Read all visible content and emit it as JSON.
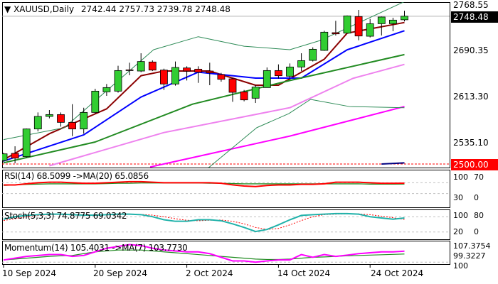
{
  "header": {
    "symbol": "XAUUSD,Daily",
    "ohlc": "2742.44 2757.73 2739.78 2748.48",
    "menu_icon": "triangle-down"
  },
  "price_axis": [
    "2768.55",
    "2690.35",
    "2613.30",
    "2535.10"
  ],
  "current_price": {
    "label": "2748.48",
    "bg": "#000000"
  },
  "level_line": {
    "label": "2500.00",
    "value": 2500,
    "color": "#ff0000"
  },
  "rsi": {
    "title": "RSI(14) 68.5099  ->MA(20) 65.0856",
    "levels": [
      "100",
      "70",
      "30",
      "0"
    ]
  },
  "stoch": {
    "title": "Stoch(5,3,3) 74.8775 69.0342",
    "levels": [
      "100",
      "80",
      "20",
      "0"
    ]
  },
  "momentum": {
    "title": "Momentum(14) 105.4031  ->MA(7) 103.7730",
    "levels": [
      "107.3754",
      "99.3227",
      "100"
    ]
  },
  "dates": [
    "10 Sep 2024",
    "20 Sep 2024",
    "2 Oct 2024",
    "14 Oct 2024",
    "24 Oct 2024"
  ],
  "colors": {
    "up": "#32cd32",
    "down": "#ff0000",
    "ma_fast": "#8b0000",
    "ma_blue": "#0000ff",
    "ma_green": "#228b22",
    "ma_violet": "#ee82ee",
    "ma_magenta": "#ff00ff",
    "bands": "#2e8b57"
  },
  "chart_data": {
    "type": "candlestick",
    "ylim": [
      2500,
      2768.55
    ],
    "date_ticks": {
      "10 Sep 2024": 0,
      "20 Sep 2024": 8,
      "2 Oct 2024": 16,
      "14 Oct 2024": 24,
      "24 Oct 2024": 32
    },
    "ohlc": [
      [
        2505.9,
        2519,
        2503,
        2517.1
      ],
      [
        2517.9,
        2529.8,
        2501.2,
        2509.9
      ],
      [
        2512.3,
        2559.7,
        2511,
        2558.9
      ],
      [
        2558.9,
        2586.7,
        2554.9,
        2580.0
      ],
      [
        2580,
        2590.7,
        2576.8,
        2583.1
      ],
      [
        2583.1,
        2586.7,
        2562.8,
        2570
      ],
      [
        2570,
        2600.6,
        2546.9,
        2558.9
      ],
      [
        2558.9,
        2594.6,
        2550.9,
        2586.7
      ],
      [
        2586.7,
        2626.5,
        2584.7,
        2622.5
      ],
      [
        2621.3,
        2634.5,
        2614.6,
        2628.5
      ],
      [
        2622.5,
        2665.1,
        2620,
        2657.1
      ],
      [
        2658.3,
        2670.3,
        2649.2,
        2657.1
      ],
      [
        2656.3,
        2686.2,
        2654.4,
        2672.3
      ],
      [
        2671.5,
        2674.2,
        2656.3,
        2657.9
      ],
      [
        2657.9,
        2660.3,
        2624.5,
        2634.5
      ],
      [
        2634.5,
        2672.3,
        2631.7,
        2662.3
      ],
      [
        2661.5,
        2664.3,
        2640.4,
        2656.3
      ],
      [
        2659.5,
        2664.3,
        2636.4,
        2654.4
      ],
      [
        2656.3,
        2670.3,
        2632.5,
        2653.2
      ],
      [
        2650.4,
        2653.2,
        2638.4,
        2642.4
      ],
      [
        2643.2,
        2644.4,
        2604.6,
        2620.5
      ],
      [
        2621.3,
        2624.5,
        2605.4,
        2607.8
      ],
      [
        2610.6,
        2632.5,
        2602.6,
        2629.3
      ],
      [
        2628.5,
        2662.3,
        2628.5,
        2657.1
      ],
      [
        2657.1,
        2667.5,
        2643.6,
        2648.4
      ],
      [
        2647.6,
        2669.1,
        2642.4,
        2663.1
      ],
      [
        2663.1,
        2686.2,
        2656.3,
        2673.8
      ],
      [
        2674.2,
        2696.1,
        2672.3,
        2692.9
      ],
      [
        2691,
        2724,
        2690.2,
        2721.6
      ],
      [
        2720.8,
        2740.7,
        2716,
        2718.8
      ],
      [
        2720,
        2749.8,
        2719.2,
        2749
      ],
      [
        2747.9,
        2759,
        2708,
        2715.2
      ],
      [
        2714.8,
        2743.9,
        2712.8,
        2735.9
      ],
      [
        2735.9,
        2747.9,
        2716,
        2747.1
      ],
      [
        2735.9,
        2745.9,
        2723.2,
        2741.9
      ],
      [
        2742.44,
        2757.73,
        2739.78,
        2748.48
      ]
    ],
    "overlays": [
      {
        "color": "#8b0000",
        "points": [
          [
            0,
            2507.1
          ],
          [
            4,
            2550.9
          ],
          [
            9,
            2592.7
          ],
          [
            12,
            2648.4
          ],
          [
            14,
            2656.3
          ],
          [
            18,
            2656.3
          ],
          [
            22,
            2632.5
          ],
          [
            24,
            2632.5
          ],
          [
            28,
            2676.2
          ],
          [
            30,
            2720
          ],
          [
            35,
            2737.9
          ]
        ]
      },
      {
        "color": "#0000ff",
        "points": [
          [
            0,
            2505
          ],
          [
            7,
            2549
          ],
          [
            12,
            2612.6
          ],
          [
            17,
            2654.4
          ],
          [
            22,
            2644.4
          ],
          [
            26,
            2644.4
          ],
          [
            30,
            2692
          ],
          [
            35,
            2724
          ]
        ]
      },
      {
        "color": "#228b22",
        "points": [
          [
            0,
            2502
          ],
          [
            8,
            2537
          ],
          [
            16.5,
            2600.6
          ],
          [
            25,
            2640.4
          ],
          [
            35,
            2684
          ]
        ]
      },
      {
        "color": "#ee82ee",
        "points": [
          [
            4,
            2497
          ],
          [
            14,
            2552.9
          ],
          [
            25,
            2594.7
          ],
          [
            30.5,
            2644
          ],
          [
            35,
            2667.5
          ]
        ]
      },
      {
        "color": "#ff00ff",
        "points": [
          [
            12.8,
            2495
          ],
          [
            25,
            2547
          ],
          [
            35,
            2596.6
          ]
        ]
      },
      {
        "color": "#000080",
        "points": [
          [
            33,
            2500
          ],
          [
            35,
            2502
          ]
        ]
      },
      {
        "color": "#2e8b57",
        "thin": true,
        "points": [
          [
            0,
            2541
          ],
          [
            5.3,
            2561
          ],
          [
            13.1,
            2692.2
          ],
          [
            17,
            2714
          ],
          [
            21,
            2698
          ],
          [
            25,
            2692.2
          ],
          [
            27.7,
            2708
          ],
          [
            35,
            2773
          ]
        ]
      },
      {
        "color": "#2e8b57",
        "thin": true,
        "points": [
          [
            17.6,
            2489
          ],
          [
            22.1,
            2561
          ],
          [
            24.9,
            2584.7
          ],
          [
            26.8,
            2608.6
          ],
          [
            30.2,
            2596.6
          ],
          [
            35,
            2594.6
          ]
        ]
      }
    ],
    "rsi": [
      62,
      62,
      66,
      70,
      72,
      72,
      70,
      68,
      68,
      70,
      72,
      74,
      74,
      72,
      70,
      70,
      70,
      70,
      70,
      68,
      62,
      58,
      56,
      60,
      62,
      62,
      64,
      64,
      66,
      72,
      72,
      72,
      70,
      68,
      68,
      68.5
    ],
    "rsi_ma": [
      60,
      62,
      64,
      65,
      66,
      66,
      66,
      66,
      66,
      67,
      68,
      68,
      69,
      69,
      69,
      69,
      69,
      69,
      68,
      68,
      67,
      66,
      66,
      66,
      66,
      66,
      66,
      66,
      66,
      66,
      66,
      66,
      65,
      65,
      65,
      65.1
    ],
    "stoch_k": [
      70,
      80,
      85,
      88,
      90,
      90,
      88,
      86,
      86,
      88,
      90,
      90,
      88,
      80,
      68,
      62,
      62,
      68,
      68,
      64,
      52,
      38,
      22,
      30,
      48,
      68,
      85,
      88,
      90,
      92,
      92,
      90,
      80,
      75,
      70,
      74.9
    ],
    "stoch_d": [
      65,
      72,
      80,
      85,
      88,
      89,
      89,
      88,
      87,
      87,
      88,
      89,
      89,
      86,
      80,
      72,
      66,
      64,
      66,
      67,
      62,
      52,
      38,
      30,
      34,
      48,
      65,
      80,
      88,
      90,
      91,
      91,
      88,
      82,
      76,
      69
    ],
    "momentum": [
      100.5,
      101.5,
      102.5,
      103,
      103.5,
      103.5,
      102.5,
      103,
      105,
      107,
      108,
      109,
      108.5,
      107,
      106,
      105.5,
      105,
      105,
      104,
      102,
      100,
      100,
      99.3,
      100,
      100.5,
      100.5,
      103.5,
      102,
      103.5,
      102.5,
      103.2,
      104,
      104.5,
      105,
      105,
      105.4
    ],
    "momentum_ma": [
      100.5,
      101,
      101.5,
      102,
      102.5,
      102.8,
      103,
      104,
      105,
      105.5,
      106,
      106,
      106,
      105.5,
      105,
      104.5,
      104,
      103.5,
      103,
      102.5,
      102,
      101.5,
      101,
      100.8,
      100.8,
      101,
      101.5,
      102,
      102.2,
      102.5,
      102.8,
      103,
      103.2,
      103.4,
      103.6,
      103.8
    ]
  }
}
